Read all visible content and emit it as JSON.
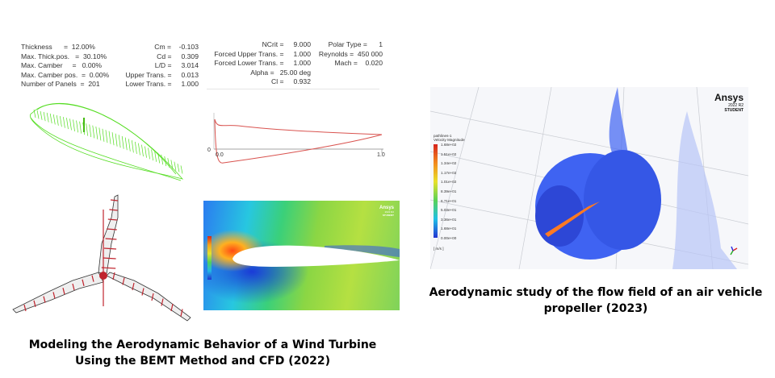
{
  "xfoil_stats": {
    "left": [
      {
        "label": "Thickness",
        "value": "12.00%",
        "text": "Thickness      =  12.00%"
      },
      {
        "label": "Max. Thick.pos.",
        "value": "30.10%",
        "text": "Max. Thick.pos.   =  30.10%"
      },
      {
        "label": "Max. Camber",
        "value": "0.00%",
        "text": "Max. Camber     =   0.00%"
      },
      {
        "label": "Max. Camber pos.",
        "value": "0.00%",
        "text": "Max. Camber pos.  =  0.00%"
      },
      {
        "label": "Number of Panels",
        "value": "201",
        "text": "Number of Panels  =  201"
      }
    ],
    "middle": [
      {
        "text": "Cm =    -0.103"
      },
      {
        "text": "Cd =     0.309"
      },
      {
        "text": "L/D =     3.014"
      },
      {
        "text": "Upper Trans. =     0.013"
      },
      {
        "text": "Lower Trans. =     1.000"
      }
    ],
    "right_a": [
      {
        "text": "NCrit =     9.000"
      },
      {
        "text": "Forced Upper Trans. =     1.000"
      },
      {
        "text": "Forced Lower Trans. =     1.000"
      },
      {
        "text": "Alpha =   25.00 deg"
      },
      {
        "text": "Cl =     0.932"
      }
    ],
    "right_b": [
      {
        "text": "Polar Type =      1"
      },
      {
        "text": "Reynolds =  450 000"
      },
      {
        "text": "Mach =    0.020"
      }
    ]
  },
  "cp_plot": {
    "tick_zero_y": "0",
    "tick_x_start": "0.0",
    "tick_x_end": "1.0"
  },
  "ansys_badge_small": {
    "brand": "Ansys",
    "version": "2022 R2",
    "edition": "STUDENT"
  },
  "ansys_badge_large": {
    "brand": "Ansys",
    "version": "2022 R2",
    "edition": "STUDENT"
  },
  "propeller_legend": {
    "title": "pathlines-1",
    "subtitle": "Velocity Magnitude",
    "unit": "[ m/s ]",
    "levels": [
      "1.68e+02",
      "1.51e+02",
      "1.34e+02",
      "1.17e+02",
      "1.01e+02",
      "8.39e+01",
      "6.71e+01",
      "5.03e+01",
      "3.36e+01",
      "1.68e+01",
      "0.00e+00"
    ]
  },
  "captions": {
    "wind_turbine": "Modeling the Aerodynamic Behavior of a Wind Turbine Using the BEMT Method and CFD (2022)",
    "propeller": "Aerodynamic study of the flow field of an air vehicle propeller (2023)"
  },
  "colors": {
    "mesh_green": "#55dd22",
    "cp_curve": "#d9534f",
    "blade_line": "#c0242e",
    "propeller_flow": "#3f63f2"
  }
}
